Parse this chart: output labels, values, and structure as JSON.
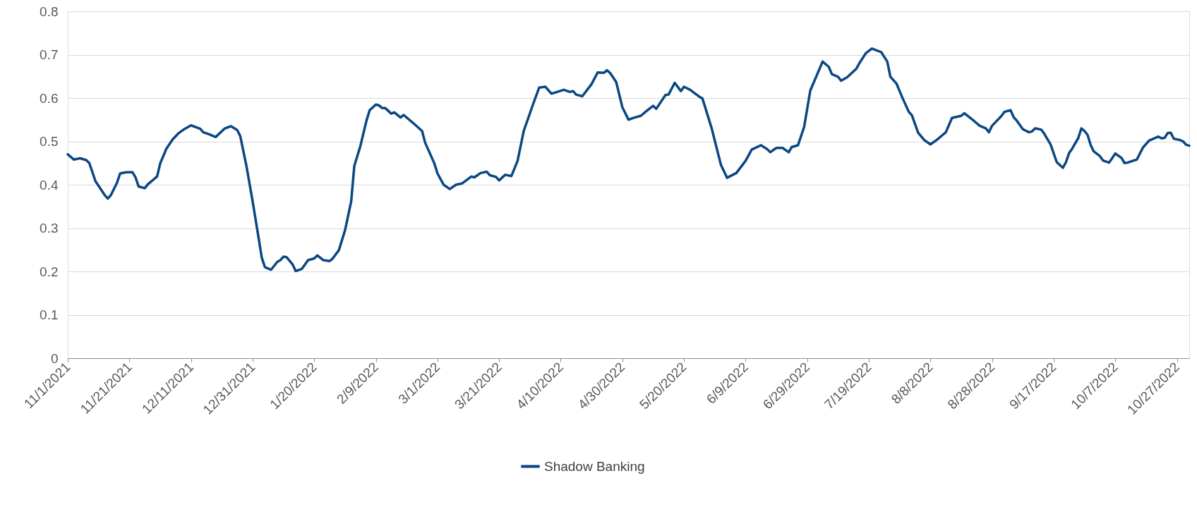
{
  "chart_data": {
    "type": "line",
    "x": [
      "2021-11-01",
      "2021-11-03",
      "2021-11-05",
      "2021-11-07",
      "2021-11-08",
      "2021-11-10",
      "2021-11-13",
      "2021-11-14",
      "2021-11-15",
      "2021-11-17",
      "2021-11-18",
      "2021-11-20",
      "2021-11-22",
      "2021-11-23",
      "2021-11-24",
      "2021-11-26",
      "2021-11-27",
      "2021-11-30",
      "2021-12-01",
      "2021-12-03",
      "2021-12-05",
      "2021-12-07",
      "2021-12-09",
      "2021-12-11",
      "2021-12-14",
      "2021-12-15",
      "2021-12-17",
      "2021-12-19",
      "2021-12-22",
      "2021-12-24",
      "2021-12-26",
      "2021-12-27",
      "2021-12-29",
      "2021-12-31",
      "2022-01-02",
      "2022-01-03",
      "2022-01-04",
      "2022-01-06",
      "2022-01-08",
      "2022-01-09",
      "2022-01-10",
      "2022-01-11",
      "2022-01-13",
      "2022-01-14",
      "2022-01-16",
      "2022-01-18",
      "2022-01-20",
      "2022-01-21",
      "2022-01-23",
      "2022-01-25",
      "2022-01-26",
      "2022-01-28",
      "2022-01-30",
      "2022-02-01",
      "2022-02-02",
      "2022-02-04",
      "2022-02-06",
      "2022-02-07",
      "2022-02-09",
      "2022-02-10",
      "2022-02-11",
      "2022-02-12",
      "2022-02-14",
      "2022-02-15",
      "2022-02-17",
      "2022-02-18",
      "2022-02-21",
      "2022-02-24",
      "2022-02-25",
      "2022-02-28",
      "2022-03-01",
      "2022-03-03",
      "2022-03-05",
      "2022-03-07",
      "2022-03-09",
      "2022-03-12",
      "2022-03-13",
      "2022-03-15",
      "2022-03-17",
      "2022-03-18",
      "2022-03-20",
      "2022-03-21",
      "2022-03-23",
      "2022-03-25",
      "2022-03-27",
      "2022-03-29",
      "2022-04-01",
      "2022-04-03",
      "2022-04-05",
      "2022-04-07",
      "2022-04-11",
      "2022-04-13",
      "2022-04-14",
      "2022-04-15",
      "2022-04-17",
      "2022-04-20",
      "2022-04-22",
      "2022-04-24",
      "2022-04-25",
      "2022-04-26",
      "2022-04-28",
      "2022-04-30",
      "2022-05-02",
      "2022-05-04",
      "2022-05-06",
      "2022-05-08",
      "2022-05-10",
      "2022-05-11",
      "2022-05-14",
      "2022-05-15",
      "2022-05-17",
      "2022-05-19",
      "2022-05-20",
      "2022-05-22",
      "2022-05-25",
      "2022-05-26",
      "2022-05-29",
      "2022-06-01",
      "2022-06-03",
      "2022-06-06",
      "2022-06-09",
      "2022-06-11",
      "2022-06-14",
      "2022-06-16",
      "2022-06-17",
      "2022-06-19",
      "2022-06-21",
      "2022-06-23",
      "2022-06-24",
      "2022-06-26",
      "2022-06-28",
      "2022-06-30",
      "2022-07-04",
      "2022-07-06",
      "2022-07-07",
      "2022-07-09",
      "2022-07-10",
      "2022-07-12",
      "2022-07-15",
      "2022-07-16",
      "2022-07-18",
      "2022-07-20",
      "2022-07-23",
      "2022-07-25",
      "2022-07-26",
      "2022-07-28",
      "2022-07-30",
      "2022-08-01",
      "2022-08-02",
      "2022-08-04",
      "2022-08-06",
      "2022-08-08",
      "2022-08-10",
      "2022-08-12",
      "2022-08-13",
      "2022-08-15",
      "2022-08-18",
      "2022-08-19",
      "2022-08-22",
      "2022-08-24",
      "2022-08-26",
      "2022-08-27",
      "2022-08-28",
      "2022-08-31",
      "2022-09-01",
      "2022-09-03",
      "2022-09-04",
      "2022-09-05",
      "2022-09-07",
      "2022-09-09",
      "2022-09-10",
      "2022-09-11",
      "2022-09-13",
      "2022-09-14",
      "2022-09-16",
      "2022-09-18",
      "2022-09-20",
      "2022-09-21",
      "2022-09-22",
      "2022-09-23",
      "2022-09-25",
      "2022-09-26",
      "2022-09-27",
      "2022-09-28",
      "2022-09-29",
      "2022-09-30",
      "2022-10-02",
      "2022-10-03",
      "2022-10-05",
      "2022-10-07",
      "2022-10-09",
      "2022-10-10",
      "2022-10-11",
      "2022-10-13",
      "2022-10-14",
      "2022-10-16",
      "2022-10-18",
      "2022-10-21",
      "2022-10-22",
      "2022-10-23",
      "2022-10-24",
      "2022-10-25",
      "2022-10-26",
      "2022-10-28",
      "2022-10-29",
      "2022-10-30",
      "2022-10-31"
    ],
    "series": [
      {
        "name": "Shadow Banking",
        "color": "#0a4783",
        "values": [
          0.47,
          0.458,
          0.461,
          0.457,
          0.45,
          0.408,
          0.376,
          0.368,
          0.376,
          0.405,
          0.426,
          0.429,
          0.429,
          0.417,
          0.396,
          0.392,
          0.401,
          0.419,
          0.449,
          0.483,
          0.504,
          0.519,
          0.529,
          0.537,
          0.529,
          0.521,
          0.516,
          0.51,
          0.53,
          0.535,
          0.526,
          0.512,
          0.443,
          0.362,
          0.275,
          0.231,
          0.21,
          0.204,
          0.222,
          0.226,
          0.234,
          0.233,
          0.216,
          0.201,
          0.206,
          0.226,
          0.23,
          0.237,
          0.226,
          0.224,
          0.23,
          0.249,
          0.295,
          0.362,
          0.443,
          0.49,
          0.549,
          0.572,
          0.585,
          0.583,
          0.577,
          0.577,
          0.564,
          0.567,
          0.555,
          0.561,
          0.543,
          0.524,
          0.497,
          0.449,
          0.426,
          0.4,
          0.39,
          0.4,
          0.403,
          0.419,
          0.417,
          0.427,
          0.43,
          0.422,
          0.418,
          0.41,
          0.423,
          0.42,
          0.455,
          0.524,
          0.585,
          0.624,
          0.626,
          0.61,
          0.619,
          0.614,
          0.616,
          0.608,
          0.604,
          0.632,
          0.659,
          0.658,
          0.664,
          0.658,
          0.637,
          0.579,
          0.55,
          0.555,
          0.559,
          0.571,
          0.582,
          0.575,
          0.607,
          0.608,
          0.635,
          0.616,
          0.626,
          0.619,
          0.603,
          0.599,
          0.53,
          0.446,
          0.416,
          0.427,
          0.455,
          0.481,
          0.491,
          0.482,
          0.475,
          0.485,
          0.485,
          0.475,
          0.487,
          0.491,
          0.533,
          0.617,
          0.684,
          0.672,
          0.655,
          0.649,
          0.64,
          0.648,
          0.668,
          0.681,
          0.703,
          0.714,
          0.706,
          0.684,
          0.649,
          0.633,
          0.599,
          0.568,
          0.56,
          0.52,
          0.503,
          0.493,
          0.503,
          0.515,
          0.521,
          0.554,
          0.559,
          0.565,
          0.548,
          0.536,
          0.53,
          0.521,
          0.536,
          0.558,
          0.568,
          0.572,
          0.556,
          0.548,
          0.528,
          0.521,
          0.523,
          0.53,
          0.527,
          0.517,
          0.493,
          0.452,
          0.439,
          0.452,
          0.473,
          0.483,
          0.508,
          0.53,
          0.524,
          0.515,
          0.492,
          0.477,
          0.466,
          0.456,
          0.451,
          0.472,
          0.462,
          0.45,
          0.451,
          0.456,
          0.458,
          0.486,
          0.502,
          0.511,
          0.507,
          0.508,
          0.519,
          0.52,
          0.506,
          0.503,
          0.5,
          0.492,
          0.49
        ]
      }
    ],
    "xlim": [
      "2021-11-01",
      "2022-10-31"
    ],
    "xticks": [
      {
        "value": "2021-11-01",
        "label": "11/1/2021"
      },
      {
        "value": "2021-11-21",
        "label": "11/21/2021"
      },
      {
        "value": "2021-12-11",
        "label": "12/11/2021"
      },
      {
        "value": "2021-12-31",
        "label": "12/31/2021"
      },
      {
        "value": "2022-01-20",
        "label": "1/20/2022"
      },
      {
        "value": "2022-02-09",
        "label": "2/9/2022"
      },
      {
        "value": "2022-03-01",
        "label": "3/1/2022"
      },
      {
        "value": "2022-03-21",
        "label": "3/21/2022"
      },
      {
        "value": "2022-04-10",
        "label": "4/10/2022"
      },
      {
        "value": "2022-04-30",
        "label": "4/30/2022"
      },
      {
        "value": "2022-05-20",
        "label": "5/20/2022"
      },
      {
        "value": "2022-06-09",
        "label": "6/9/2022"
      },
      {
        "value": "2022-06-29",
        "label": "6/29/2022"
      },
      {
        "value": "2022-07-19",
        "label": "7/19/2022"
      },
      {
        "value": "2022-08-08",
        "label": "8/8/2022"
      },
      {
        "value": "2022-08-28",
        "label": "8/28/2022"
      },
      {
        "value": "2022-09-17",
        "label": "9/17/2022"
      },
      {
        "value": "2022-10-07",
        "label": "10/7/2022"
      },
      {
        "value": "2022-10-27",
        "label": "10/27/2022"
      }
    ],
    "ylim": [
      0,
      0.8
    ],
    "yticks": [
      0,
      0.1,
      0.2,
      0.3,
      0.4,
      0.5,
      0.6,
      0.7,
      0.8
    ],
    "grid": "y",
    "legend": "bottom",
    "marker": "none",
    "line_style": "solid"
  }
}
